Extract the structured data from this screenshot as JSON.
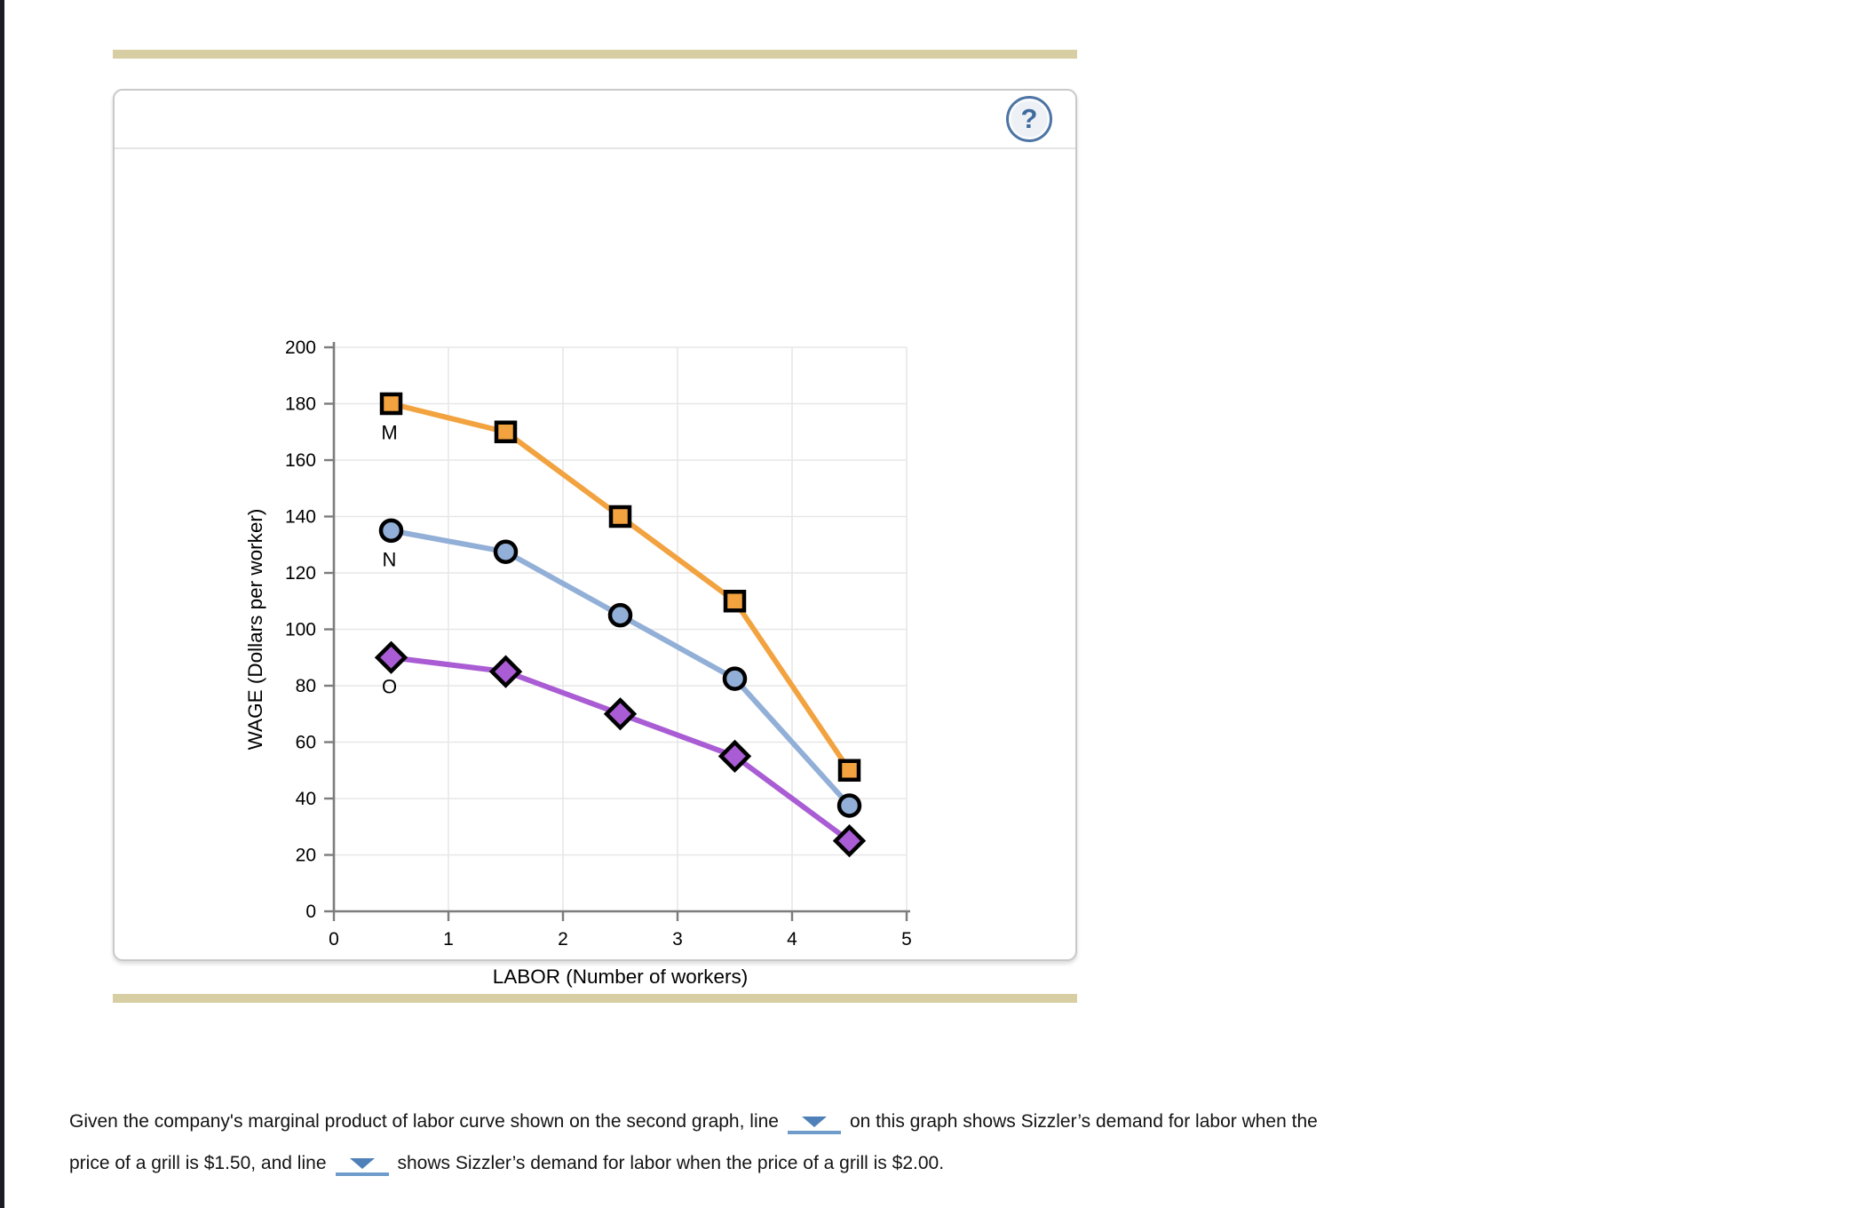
{
  "page": {
    "background_color": "#ffffff",
    "left_strip_color": "#1a1e23",
    "accent_bar_color": "#d7cfa3"
  },
  "panel": {
    "help_icon": "?"
  },
  "chart_data": {
    "type": "line",
    "title": "",
    "xlabel": "LABOR (Number of workers)",
    "ylabel": "WAGE (Dollars per worker)",
    "xlim": [
      0,
      5
    ],
    "ylim": [
      0,
      200
    ],
    "xticks": [
      0,
      1,
      2,
      3,
      4,
      5
    ],
    "yticks": [
      0,
      20,
      40,
      60,
      80,
      100,
      120,
      140,
      160,
      180,
      200
    ],
    "grid": true,
    "legend_position": "labels-at-first-point",
    "x": [
      0.5,
      1.5,
      2.5,
      3.5,
      4.5
    ],
    "series": [
      {
        "name": "M",
        "marker": "square",
        "color": "#f2a340",
        "values": [
          180,
          170,
          140,
          110,
          50
        ]
      },
      {
        "name": "N",
        "marker": "circle",
        "color": "#92afd7",
        "values": [
          135,
          127.5,
          105,
          82.5,
          37.5
        ]
      },
      {
        "name": "O",
        "marker": "diamond",
        "color": "#a95cd3",
        "values": [
          90,
          85,
          70,
          55,
          25
        ]
      }
    ]
  },
  "question": {
    "line1_before": "Given the company's marginal product of labor curve shown on the second graph, line",
    "line1_after": "on this graph shows Sizzler’s demand for labor when the",
    "line2_before": "price of a grill is $1.50, and line",
    "line2_after": "shows Sizzler’s demand for labor when the price of a grill is $2.00.",
    "dropdown1_value": "",
    "dropdown2_value": ""
  },
  "chart_colors": {
    "axis": "#7c7c7c",
    "gridline": "#e7e7e7",
    "marker_outline": "#000000"
  }
}
